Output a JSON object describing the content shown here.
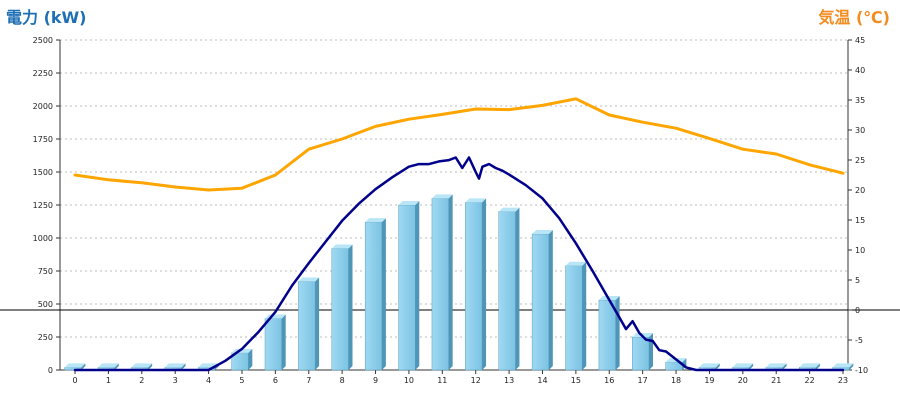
{
  "chart_data": {
    "type": "bar",
    "title": "",
    "left_axis": {
      "label": "電力 (kW)",
      "ylim": [
        0,
        2500
      ],
      "ticks": [
        0,
        250,
        500,
        750,
        1000,
        1250,
        1500,
        1750,
        2000,
        2250,
        2500
      ],
      "color": "#1f6fb5"
    },
    "right_axis": {
      "label": "気温 (℃)",
      "ylim": [
        -10,
        45
      ],
      "ticks": [
        -10,
        -5,
        0,
        5,
        10,
        15,
        20,
        25,
        30,
        35,
        40,
        45
      ],
      "color": "#f28c1e"
    },
    "categories": [
      "0",
      "1",
      "2",
      "3",
      "4",
      "5",
      "6",
      "7",
      "8",
      "9",
      "10",
      "11",
      "12",
      "13",
      "14",
      "15",
      "16",
      "17",
      "18",
      "19",
      "20",
      "21",
      "22",
      "23"
    ],
    "grid": true,
    "series": [
      {
        "type": "bar",
        "axis": "left",
        "color": "#87ceeb",
        "values": [
          20,
          20,
          20,
          20,
          20,
          130,
          390,
          670,
          920,
          1120,
          1250,
          1300,
          1270,
          1200,
          1030,
          790,
          530,
          250,
          60,
          20,
          20,
          20,
          20,
          20
        ]
      },
      {
        "type": "line",
        "axis": "left",
        "color": "#00008b",
        "x": [
          0,
          1,
          2,
          3,
          4,
          4.5,
          5,
          5.5,
          6,
          6.5,
          7,
          7.5,
          8,
          8.5,
          9,
          9.5,
          10,
          10.3,
          10.6,
          10.9,
          11.2,
          11.4,
          11.6,
          11.8,
          12,
          12.1,
          12.2,
          12.4,
          12.6,
          12.8,
          13,
          13.5,
          14,
          14.5,
          15,
          15.5,
          16,
          16.3,
          16.5,
          16.7,
          16.9,
          17.1,
          17.3,
          17.5,
          17.7,
          18,
          18.3,
          18.6,
          19,
          20,
          21,
          22,
          23
        ],
        "values": [
          0,
          0,
          0,
          0,
          0,
          70,
          160,
          290,
          440,
          640,
          810,
          970,
          1130,
          1260,
          1370,
          1460,
          1540,
          1560,
          1560,
          1580,
          1590,
          1610,
          1530,
          1610,
          1500,
          1450,
          1540,
          1560,
          1530,
          1510,
          1480,
          1400,
          1300,
          1150,
          960,
          750,
          530,
          400,
          310,
          370,
          280,
          230,
          220,
          150,
          140,
          80,
          20,
          0,
          0,
          0,
          0,
          0,
          0
        ]
      },
      {
        "type": "line",
        "axis": "right",
        "color": "#ffa500",
        "values": [
          22.5,
          21.7,
          21.2,
          20.5,
          20.0,
          20.3,
          22.5,
          26.8,
          28.5,
          30.6,
          31.8,
          32.6,
          33.5,
          33.4,
          34.1,
          35.2,
          32.5,
          31.3,
          30.3,
          28.6,
          26.8,
          26.0,
          24.2,
          22.8
        ]
      }
    ]
  }
}
